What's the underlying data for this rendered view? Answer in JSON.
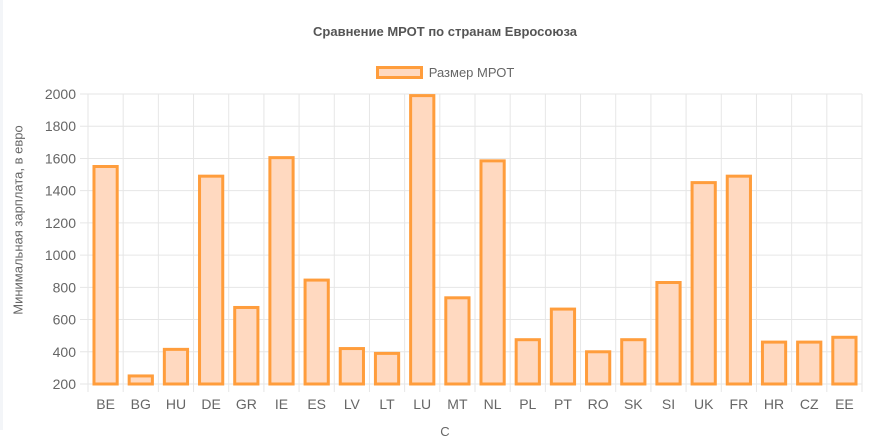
{
  "chart_data": {
    "type": "bar",
    "title": "Сравнение МРОТ по странам Евросоюза",
    "ylabel": "Минимальная зарплата, в евро",
    "xlabel": "С",
    "legend": [
      "Размер МРОТ"
    ],
    "legend_position": "top",
    "grid": true,
    "ylim": [
      200,
      2000
    ],
    "yticks": [
      200,
      400,
      600,
      800,
      1000,
      1200,
      1400,
      1600,
      1800,
      2000
    ],
    "categories": [
      "BE",
      "BG",
      "HU",
      "DE",
      "GR",
      "IE",
      "ES",
      "LV",
      "LT",
      "LU",
      "MT",
      "NL",
      "PL",
      "PT",
      "RO",
      "SK",
      "SI",
      "UK",
      "FR",
      "HR",
      "CZ",
      "EE"
    ],
    "series": [
      {
        "name": "Размер МРОТ",
        "values": [
          1550,
          250,
          415,
          1490,
          675,
          1605,
          845,
          420,
          390,
          1990,
          735,
          1585,
          475,
          665,
          400,
          475,
          830,
          1450,
          1490,
          460,
          460,
          490
        ]
      }
    ],
    "colors": {
      "bar_border": "#ff9d3c",
      "bar_fill": "#ffd9c0",
      "grid": "#e6e6e6"
    }
  }
}
